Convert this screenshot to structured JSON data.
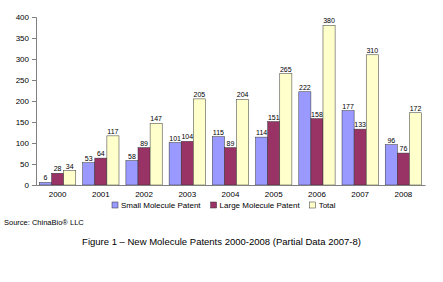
{
  "chart_data": {
    "type": "bar",
    "title": "Figure 1 – New Molecule Patents 2000-2008 (Partial Data 2007-8)",
    "annotations": [
      "Source: ChinaBio® LLC"
    ],
    "categories": [
      "2000",
      "2001",
      "2002",
      "2003",
      "2004",
      "2005",
      "2006",
      "2007",
      "2008"
    ],
    "series": [
      {
        "name": "Small Molecule Patent",
        "color": "#9999ff",
        "values": [
          6,
          53,
          58,
          101,
          115,
          114,
          222,
          177,
          96
        ]
      },
      {
        "name": "Large Molecule Patent",
        "color": "#993366",
        "values": [
          28,
          64,
          89,
          104,
          89,
          151,
          158,
          133,
          76
        ]
      },
      {
        "name": "Total",
        "color": "#ffffcc",
        "values": [
          34,
          117,
          147,
          205,
          204,
          265,
          380,
          310,
          172
        ]
      }
    ],
    "ylim": [
      0,
      400
    ],
    "yticks": [
      0,
      50,
      100,
      150,
      200,
      250,
      300,
      350,
      400
    ],
    "grid": false,
    "legend": "bottom",
    "data_labels": true
  }
}
